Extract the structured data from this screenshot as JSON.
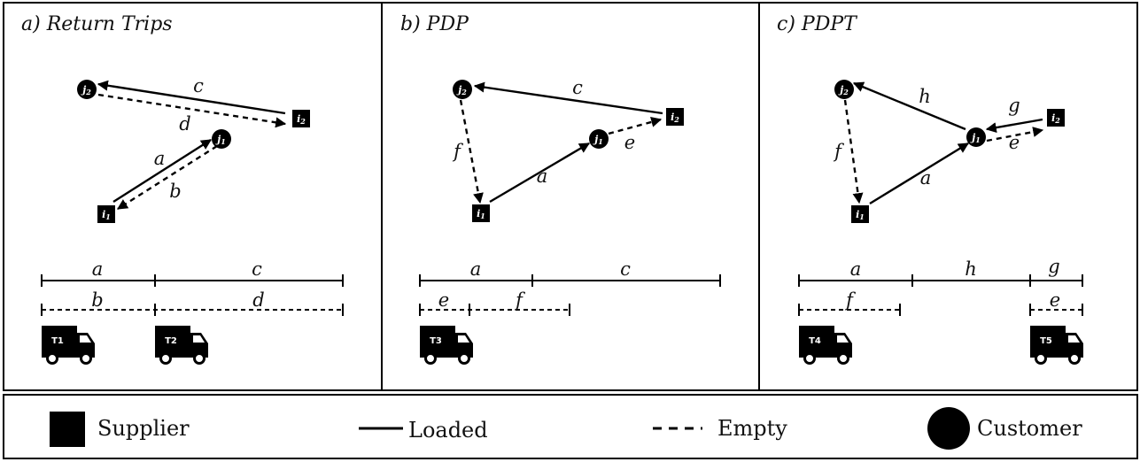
{
  "panels": [
    {
      "title": "a) Return Trips"
    },
    {
      "title": "b) PDP"
    },
    {
      "title": "c) PDPT"
    }
  ],
  "nodes": {
    "j2": "j2",
    "i2": "i2",
    "j1": "j1",
    "i1": "i1"
  },
  "edge_labels": {
    "a": "a",
    "b": "b",
    "c": "c",
    "d": "d",
    "e": "e",
    "f": "f",
    "g": "g",
    "h": "h"
  },
  "trucks": [
    "T1",
    "T2",
    "T3",
    "T4",
    "T5"
  ],
  "legend": {
    "supplier": "Supplier",
    "loaded": "Loaded",
    "empty": "Empty",
    "customer": "Customer"
  }
}
